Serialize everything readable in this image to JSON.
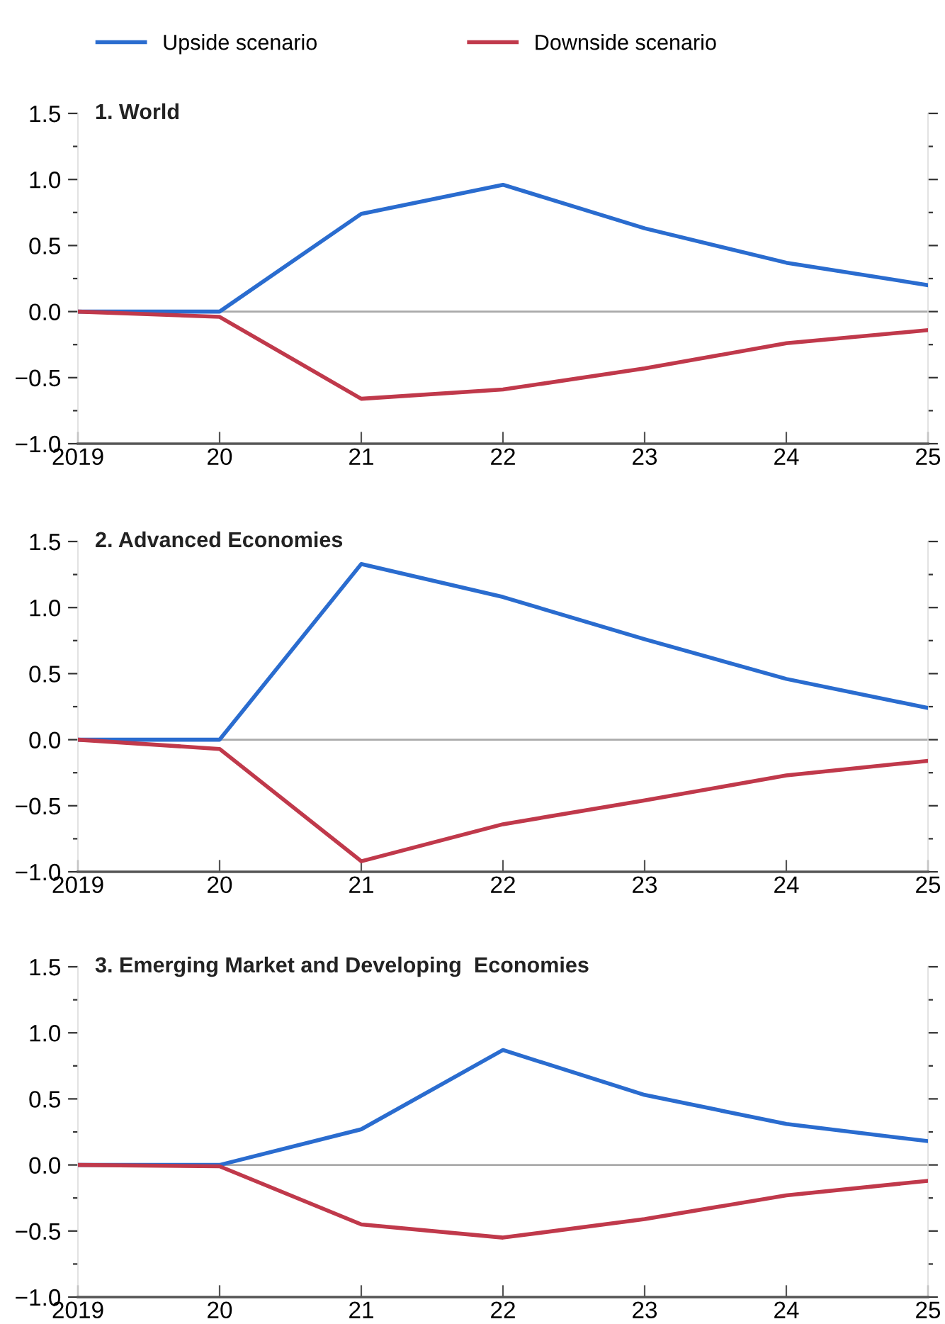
{
  "chart_data": [
    {
      "type": "line",
      "title": "1. World",
      "categories": [
        "2019",
        "20",
        "21",
        "22",
        "23",
        "24",
        "25"
      ],
      "series": [
        {
          "name": "Upside scenario",
          "color": "#2a6ccf",
          "values": [
            0,
            0,
            0.74,
            0.96,
            0.63,
            0.37,
            0.2
          ]
        },
        {
          "name": "Downside scenario",
          "color": "#c0394b",
          "values": [
            0,
            -0.04,
            -0.66,
            -0.59,
            -0.43,
            -0.24,
            -0.14
          ]
        }
      ],
      "ylim": [
        -1.0,
        1.5
      ],
      "yticks": [
        {
          "value": -1.0,
          "label": "−1.0"
        },
        {
          "value": -0.75,
          "label": null
        },
        {
          "value": -0.5,
          "label": "−0.5"
        },
        {
          "value": -0.25,
          "label": null
        },
        {
          "value": 0,
          "label": "0.0"
        },
        {
          "value": 0.25,
          "label": null
        },
        {
          "value": 0.5,
          "label": "0.5"
        },
        {
          "value": 0.75,
          "label": null
        },
        {
          "value": 1.0,
          "label": "1.0"
        },
        {
          "value": 1.25,
          "label": null
        },
        {
          "value": 1.5,
          "label": "1.5"
        }
      ],
      "ref_lines": [
        {
          "axis": "y",
          "value": 0,
          "color": "#aaaaaa"
        }
      ],
      "legend": "top",
      "grid": false
    },
    {
      "type": "line",
      "title": "2. Advanced Economies",
      "categories": [
        "2019",
        "20",
        "21",
        "22",
        "23",
        "24",
        "25"
      ],
      "series": [
        {
          "color": "#2a6ccf",
          "values": [
            0,
            0,
            1.33,
            1.08,
            0.76,
            0.46,
            0.24
          ]
        },
        {
          "color": "#c0394b",
          "values": [
            0,
            -0.07,
            -0.92,
            -0.64,
            -0.46,
            -0.27,
            -0.16
          ]
        }
      ],
      "ylim": [
        -1.0,
        1.5
      ],
      "yticks": [
        {
          "value": -1.0,
          "label": "−1.0"
        },
        {
          "value": -0.75,
          "label": null
        },
        {
          "value": -0.5,
          "label": "−0.5"
        },
        {
          "value": -0.25,
          "label": null
        },
        {
          "value": 0,
          "label": "0.0"
        },
        {
          "value": 0.25,
          "label": null
        },
        {
          "value": 0.5,
          "label": "0.5"
        },
        {
          "value": 0.75,
          "label": null
        },
        {
          "value": 1.0,
          "label": "1.0"
        },
        {
          "value": 1.25,
          "label": null
        },
        {
          "value": 1.5,
          "label": "1.5"
        }
      ],
      "ref_lines": [
        {
          "axis": "y",
          "value": 0,
          "color": "#aaaaaa"
        }
      ],
      "grid": false
    },
    {
      "type": "line",
      "title": "3. Emerging Market and Developing  Economies",
      "categories": [
        "2019",
        "20",
        "21",
        "22",
        "23",
        "24",
        "25"
      ],
      "series": [
        {
          "color": "#2a6ccf",
          "values": [
            0,
            0,
            0.27,
            0.87,
            0.53,
            0.31,
            0.18
          ]
        },
        {
          "color": "#c0394b",
          "values": [
            0,
            -0.01,
            -0.45,
            -0.55,
            -0.41,
            -0.23,
            -0.12
          ]
        }
      ],
      "ylim": [
        -1.0,
        1.5
      ],
      "yticks": [
        {
          "value": -1.0,
          "label": "−1.0"
        },
        {
          "value": -0.75,
          "label": null
        },
        {
          "value": -0.5,
          "label": "−0.5"
        },
        {
          "value": -0.25,
          "label": null
        },
        {
          "value": 0,
          "label": "0.0"
        },
        {
          "value": 0.25,
          "label": null
        },
        {
          "value": 0.5,
          "label": "0.5"
        },
        {
          "value": 0.75,
          "label": null
        },
        {
          "value": 1.0,
          "label": "1.0"
        },
        {
          "value": 1.25,
          "label": null
        },
        {
          "value": 1.5,
          "label": "1.5"
        }
      ],
      "ref_lines": [
        {
          "axis": "y",
          "value": 0,
          "color": "#aaaaaa"
        }
      ],
      "grid": false
    }
  ]
}
